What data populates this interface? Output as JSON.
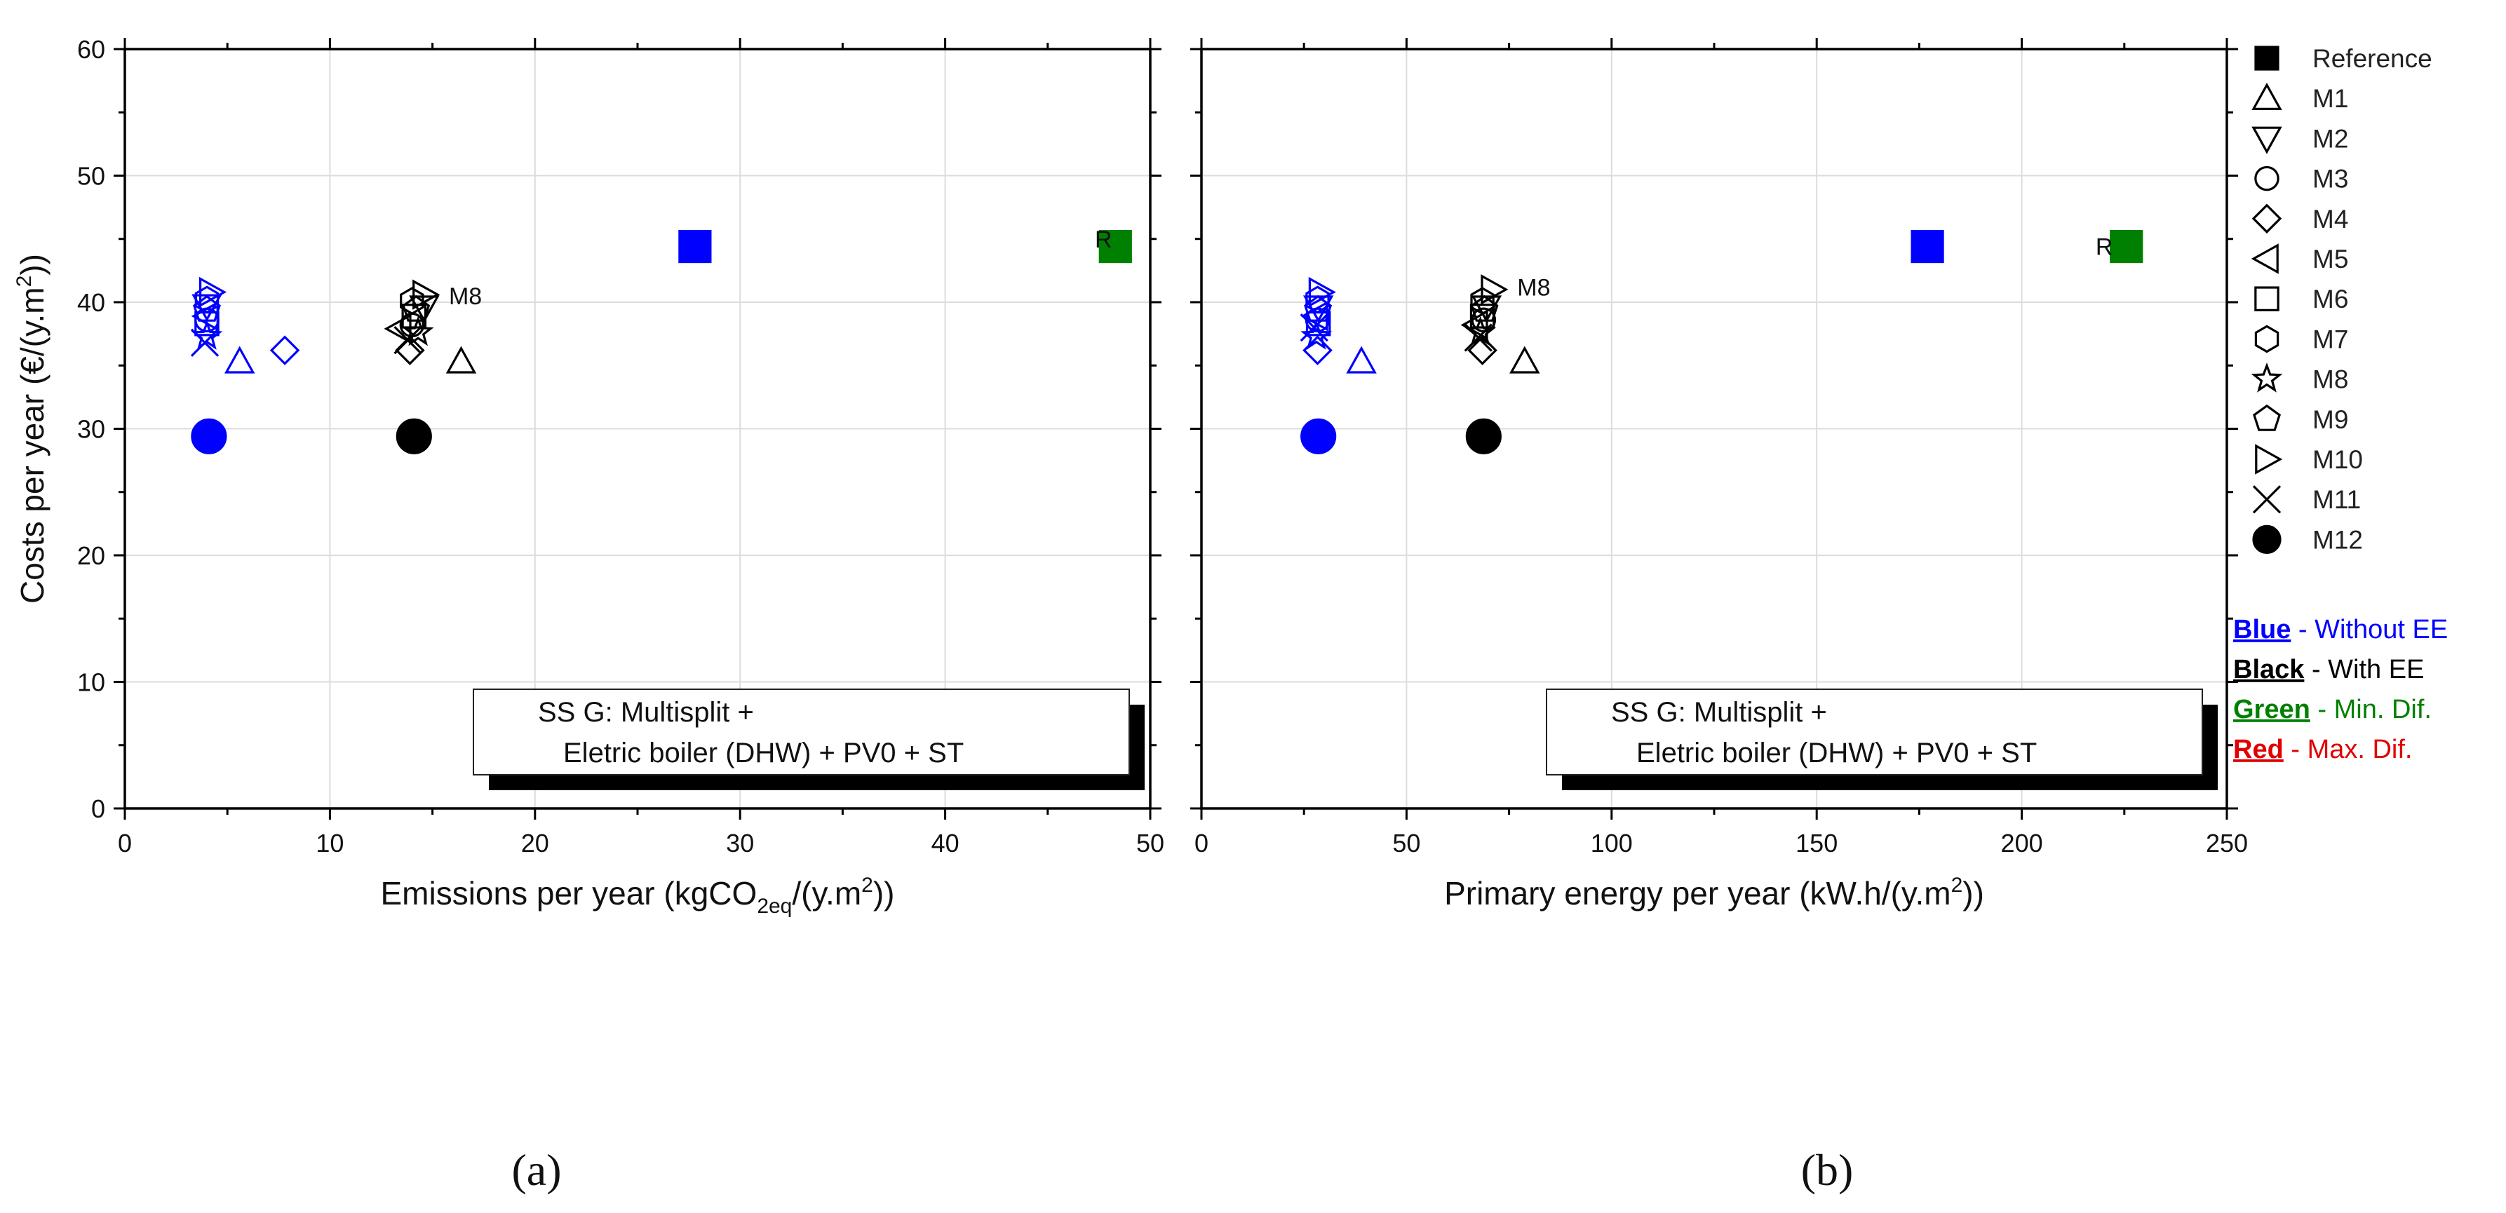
{
  "chart_data": [
    {
      "type": "scatter",
      "panel": "(a)",
      "xlabel": {
        "main": "Emissions per year (kgCO",
        "sub": "2eq",
        "tail": "/(y.m",
        "sup": "2",
        "end": "))"
      },
      "ylabel": {
        "main": "Costs per year (€/(y.m",
        "sup": "2",
        "end": "))"
      },
      "xlim": [
        0,
        50
      ],
      "ylim": [
        0,
        60
      ],
      "xticks": [
        "0",
        "10",
        "20",
        "30",
        "40",
        "50"
      ],
      "yticks": [
        "0",
        "10",
        "20",
        "30",
        "40",
        "50",
        "60"
      ],
      "grid": true,
      "note": [
        "SS G: Multisplit +",
        "Eletric boiler (DHW) + PV0 + ST"
      ],
      "annotations": [
        {
          "text": "R",
          "x": 47.3,
          "y": 45.0
        },
        {
          "text": "M8",
          "x": 15.8,
          "y": 40.5
        }
      ],
      "points": [
        {
          "series": "Reference",
          "color": "#0000ff",
          "x": 27.8,
          "y": 44.4
        },
        {
          "series": "Reference",
          "color": "#008000",
          "x": 48.3,
          "y": 44.4
        },
        {
          "series": "M1",
          "color": "#0000ff",
          "x": 5.6,
          "y": 35.3
        },
        {
          "series": "M2",
          "color": "#0000ff",
          "x": 4.0,
          "y": 39.7
        },
        {
          "series": "M3",
          "color": "#0000ff",
          "x": 4.0,
          "y": 38.6
        },
        {
          "series": "M4",
          "color": "#0000ff",
          "x": 7.8,
          "y": 36.2
        },
        {
          "series": "M5",
          "color": "#0000ff",
          "x": 4.0,
          "y": 38.9
        },
        {
          "series": "M6",
          "color": "#0000ff",
          "x": 4.0,
          "y": 38.3
        },
        {
          "series": "M7",
          "color": "#0000ff",
          "x": 4.0,
          "y": 40.2
        },
        {
          "series": "M8",
          "color": "#0000ff",
          "x": 4.0,
          "y": 37.3
        },
        {
          "series": "M9",
          "color": "#0000ff",
          "x": 4.0,
          "y": 39.4
        },
        {
          "series": "M10",
          "color": "#0000ff",
          "x": 4.2,
          "y": 40.8
        },
        {
          "series": "M11",
          "color": "#0000ff",
          "x": 3.9,
          "y": 36.8
        },
        {
          "series": "M12",
          "color": "#0000ff",
          "x": 4.1,
          "y": 29.4
        },
        {
          "series": "M1",
          "color": "#000000",
          "x": 16.4,
          "y": 35.3
        },
        {
          "series": "M2",
          "color": "#000000",
          "x": 14.6,
          "y": 39.6
        },
        {
          "series": "M3",
          "color": "#000000",
          "x": 14.0,
          "y": 38.2
        },
        {
          "series": "M4",
          "color": "#000000",
          "x": 13.9,
          "y": 36.2
        },
        {
          "series": "M5",
          "color": "#000000",
          "x": 13.4,
          "y": 37.9
        },
        {
          "series": "M6",
          "color": "#000000",
          "x": 14.1,
          "y": 38.9
        },
        {
          "series": "M7",
          "color": "#000000",
          "x": 14.0,
          "y": 40.1
        },
        {
          "series": "M8",
          "color": "#000000",
          "x": 14.3,
          "y": 37.6
        },
        {
          "series": "M9",
          "color": "#000000",
          "x": 14.2,
          "y": 39.4
        },
        {
          "series": "M10",
          "color": "#000000",
          "x": 14.6,
          "y": 40.6
        },
        {
          "series": "M11",
          "color": "#000000",
          "x": 13.8,
          "y": 37.0
        },
        {
          "series": "M12",
          "color": "#000000",
          "x": 14.1,
          "y": 29.4
        }
      ]
    },
    {
      "type": "scatter",
      "panel": "(b)",
      "xlabel": {
        "main": "Primary energy per year (kW.h/(y.m",
        "sup": "2",
        "end": "))"
      },
      "ylabel": null,
      "xlim": [
        0,
        250
      ],
      "ylim": [
        0,
        60
      ],
      "xticks": [
        "0",
        "50",
        "100",
        "150",
        "200",
        "250"
      ],
      "yticks": [],
      "grid": true,
      "note": [
        "SS G: Multisplit +",
        "Eletric boiler (DHW) + PV0 + ST"
      ],
      "annotations": [
        {
          "text": "R",
          "x": 218.0,
          "y": 44.4
        },
        {
          "text": "M8",
          "x": 77.0,
          "y": 41.2
        }
      ],
      "points": [
        {
          "series": "Reference",
          "color": "#0000ff",
          "x": 177.0,
          "y": 44.4
        },
        {
          "series": "Reference",
          "color": "#008000",
          "x": 225.5,
          "y": 44.4
        },
        {
          "series": "M1",
          "color": "#0000ff",
          "x": 39.0,
          "y": 35.3
        },
        {
          "series": "M2",
          "color": "#0000ff",
          "x": 28.5,
          "y": 39.6
        },
        {
          "series": "M3",
          "color": "#0000ff",
          "x": 28.3,
          "y": 38.6
        },
        {
          "series": "M4",
          "color": "#0000ff",
          "x": 28.3,
          "y": 36.2
        },
        {
          "series": "M5",
          "color": "#0000ff",
          "x": 28.0,
          "y": 38.9
        },
        {
          "series": "M6",
          "color": "#0000ff",
          "x": 28.5,
          "y": 38.3
        },
        {
          "series": "M7",
          "color": "#0000ff",
          "x": 28.3,
          "y": 40.2
        },
        {
          "series": "M8",
          "color": "#0000ff",
          "x": 28.0,
          "y": 37.3
        },
        {
          "series": "M9",
          "color": "#0000ff",
          "x": 28.4,
          "y": 39.4
        },
        {
          "series": "M10",
          "color": "#0000ff",
          "x": 29.0,
          "y": 40.8
        },
        {
          "series": "M11",
          "color": "#0000ff",
          "x": 27.5,
          "y": 38.0
        },
        {
          "series": "M12",
          "color": "#0000ff",
          "x": 28.5,
          "y": 29.4
        },
        {
          "series": "M1",
          "color": "#000000",
          "x": 78.8,
          "y": 35.3
        },
        {
          "series": "M2",
          "color": "#000000",
          "x": 69.5,
          "y": 39.6
        },
        {
          "series": "M3",
          "color": "#000000",
          "x": 68.8,
          "y": 38.6
        },
        {
          "series": "M4",
          "color": "#000000",
          "x": 68.5,
          "y": 36.2
        },
        {
          "series": "M5",
          "color": "#000000",
          "x": 67.0,
          "y": 38.2
        },
        {
          "series": "M6",
          "color": "#000000",
          "x": 68.5,
          "y": 38.9
        },
        {
          "series": "M7",
          "color": "#000000",
          "x": 68.5,
          "y": 40.1
        },
        {
          "series": "M8",
          "color": "#000000",
          "x": 68.0,
          "y": 37.6
        },
        {
          "series": "M9",
          "color": "#000000",
          "x": 69.0,
          "y": 39.4
        },
        {
          "series": "M10",
          "color": "#000000",
          "x": 71.0,
          "y": 41.0
        },
        {
          "series": "M11",
          "color": "#000000",
          "x": 67.5,
          "y": 37.2
        },
        {
          "series": "M12",
          "color": "#000000",
          "x": 68.8,
          "y": 29.4
        }
      ]
    }
  ],
  "legend": {
    "items": [
      {
        "label": "Reference",
        "marker": "square-filled"
      },
      {
        "label": "M1",
        "marker": "triangle-up"
      },
      {
        "label": "M2",
        "marker": "triangle-down"
      },
      {
        "label": "M3",
        "marker": "circle"
      },
      {
        "label": "M4",
        "marker": "diamond"
      },
      {
        "label": "M5",
        "marker": "triangle-left"
      },
      {
        "label": "M6",
        "marker": "square"
      },
      {
        "label": "M7",
        "marker": "hexagon"
      },
      {
        "label": "M8",
        "marker": "star"
      },
      {
        "label": "M9",
        "marker": "pentagon"
      },
      {
        "label": "M10",
        "marker": "triangle-right"
      },
      {
        "label": "M11",
        "marker": "cross"
      },
      {
        "label": "M12",
        "marker": "circle-filled"
      }
    ],
    "color_key": [
      {
        "name": "Blue",
        "desc": " - Without EE",
        "color": "#0000ff",
        "desc_color": "#0000ff"
      },
      {
        "name": "Black",
        "desc": " - With EE",
        "color": "#000000",
        "desc_color": "#000000"
      },
      {
        "name": "Green",
        "desc": " - Min. Dif.",
        "color": "#008000",
        "desc_color": "#008000"
      },
      {
        "name": "Red",
        "desc": " - Max. Dif.",
        "color": "#e00000",
        "desc_color": "#e00000"
      }
    ]
  },
  "captions": {
    "a": "(a)",
    "b": "(b)"
  }
}
